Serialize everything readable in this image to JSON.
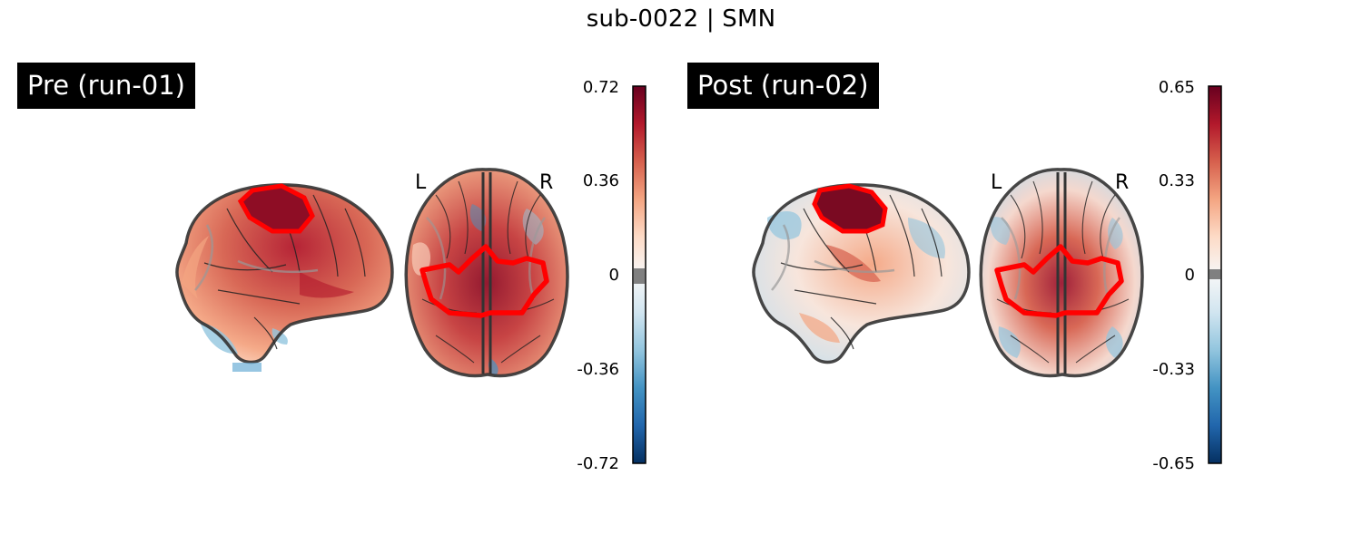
{
  "figure": {
    "title": "sub-0022 | SMN"
  },
  "panels": [
    {
      "label": "Pre (run-01)",
      "left_marker": "L",
      "right_marker": "R",
      "colorbar": {
        "max": "0.72",
        "mid_high": "0.36",
        "zero": "0",
        "mid_low": "-0.36",
        "min": "-0.72"
      }
    },
    {
      "label": "Post (run-02)",
      "left_marker": "L",
      "right_marker": "R",
      "colorbar": {
        "max": "0.65",
        "mid_high": "0.33",
        "zero": "0",
        "mid_low": "-0.33",
        "min": "-0.65"
      }
    }
  ],
  "colors": {
    "colormap": [
      "#053061",
      "#2166ac",
      "#4393c3",
      "#92c5de",
      "#d1e5f0",
      "#f7f7f7",
      "#fddbc7",
      "#f4a582",
      "#d6604d",
      "#b2182b",
      "#67001f"
    ],
    "threshold_band": "#808080",
    "roi_outline": "#ff0000",
    "brain_outline": "#333333"
  }
}
